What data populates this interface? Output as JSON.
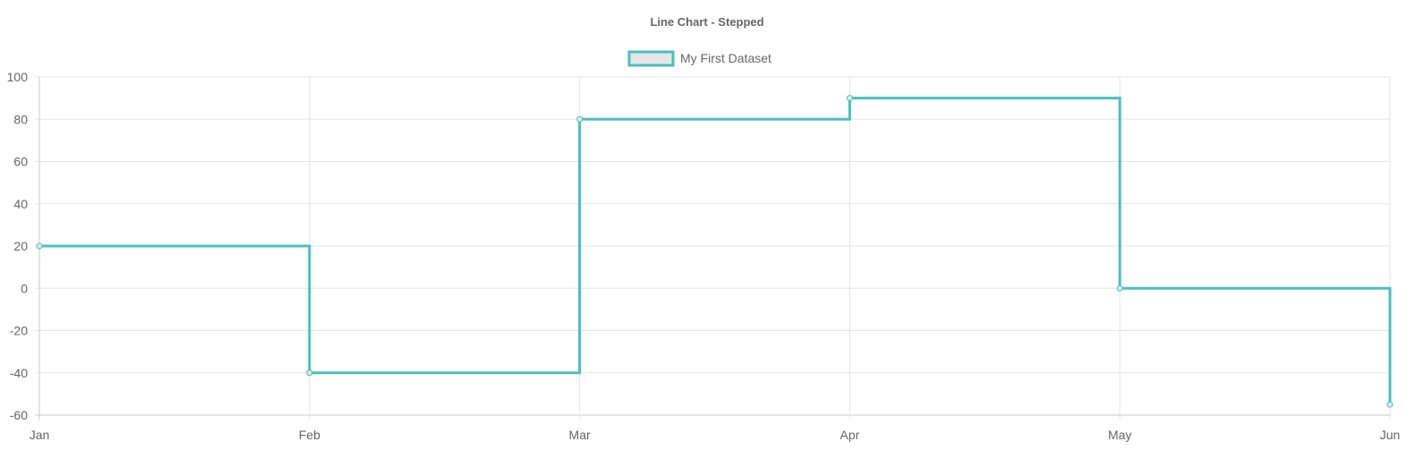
{
  "chart_data": {
    "type": "line",
    "title": "Line Chart - Stepped",
    "stepped": true,
    "categories": [
      "Jan",
      "Feb",
      "Mar",
      "Apr",
      "May",
      "Jun"
    ],
    "series": [
      {
        "name": "My First Dataset",
        "values": [
          20,
          -40,
          80,
          90,
          0,
          -55
        ],
        "color": "#4bbfbf",
        "fill": "#e6e6e6"
      }
    ],
    "ylim": [
      -60,
      100
    ],
    "yticks": [
      100,
      80,
      60,
      40,
      20,
      0,
      -20,
      -40,
      -60
    ],
    "grid": true,
    "legend": "top-center",
    "xlabel": "",
    "ylabel": ""
  }
}
